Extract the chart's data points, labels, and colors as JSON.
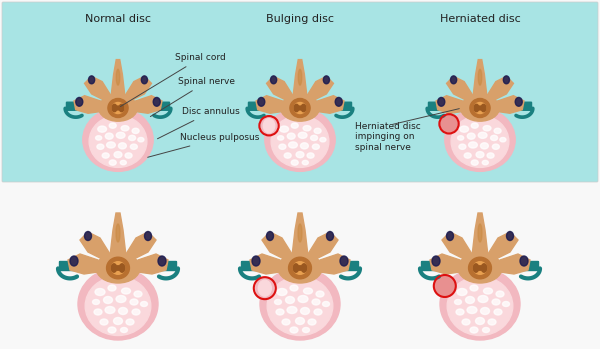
{
  "bg_color": "#f8f8f8",
  "panel_bg": "#a8e4e4",
  "title1": "Normal disc",
  "title2": "Bulging disc",
  "title3": "Herniated disc",
  "label_spinal_cord": "Spinal cord",
  "label_spinal_nerve": "Spinal nerve",
  "label_disc_annulus": "Disc annulus",
  "label_nucleus": "Nucleus pulposus",
  "label_herniated": "Herniated disc\nimpinging on\nspinal nerve",
  "disc_outer": "#f2b8c0",
  "disc_inner": "#fad8dc",
  "disc_rim": "#e898a8",
  "vertebra_tan": "#d8a06a",
  "vertebra_mid": "#c88840",
  "vertebra_dark": "#b87030",
  "spinal_dark": "#9a5820",
  "nerve_teal": "#1a8080",
  "red_circle": "#dd1111",
  "hernia_pink": "#e89090",
  "dark_navy": "#1a1a50",
  "text_color": "#222222",
  "white": "#ffffff",
  "font_title": 8,
  "font_label": 6.5
}
